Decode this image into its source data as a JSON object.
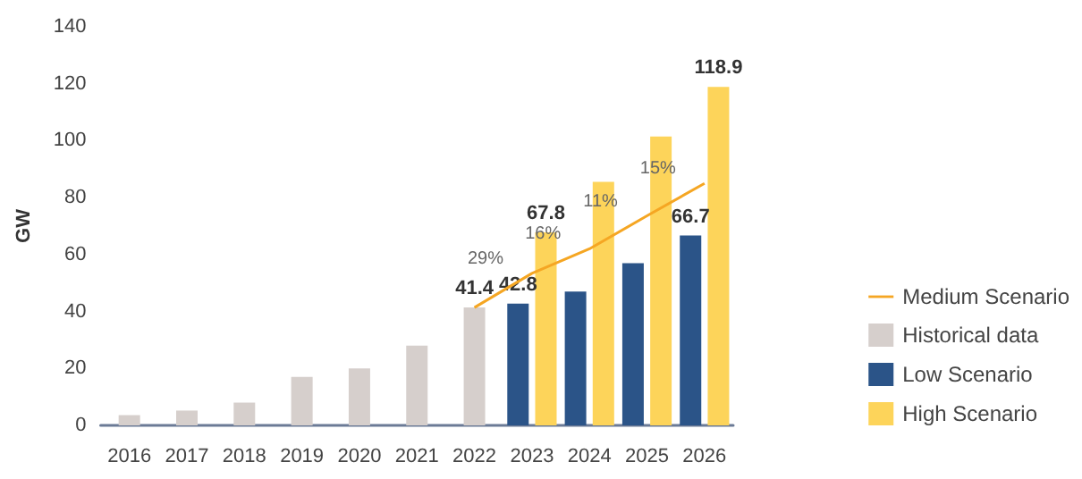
{
  "chart_data": {
    "type": "bar",
    "ylabel": "GW",
    "categories": [
      "2016",
      "2017",
      "2018",
      "2019",
      "2020",
      "2021",
      "2022",
      "2023",
      "2024",
      "2025",
      "2026"
    ],
    "series": [
      {
        "name": "Medium Scenario",
        "type": "line",
        "color": "#f5a623",
        "values": [
          null,
          null,
          null,
          null,
          null,
          null,
          41.4,
          53.4,
          62,
          73.6,
          85
        ]
      },
      {
        "name": "Historical data",
        "color": "#d6cfcc",
        "values": [
          3.6,
          5.2,
          8,
          17,
          20,
          28,
          41.4,
          null,
          null,
          null,
          null
        ],
        "value_labels": [
          null,
          null,
          null,
          null,
          null,
          null,
          "41.4",
          null,
          null,
          null,
          null
        ]
      },
      {
        "name": "Low Scenario",
        "color": "#2b5488",
        "values": [
          null,
          null,
          null,
          null,
          null,
          null,
          null,
          42.8,
          47,
          57,
          66.7
        ],
        "value_labels": [
          null,
          null,
          null,
          null,
          null,
          null,
          null,
          "42.8",
          null,
          null,
          "66.7"
        ]
      },
      {
        "name": "High Scenario",
        "color": "#fdd45a",
        "values": [
          null,
          null,
          null,
          null,
          null,
          null,
          null,
          67.8,
          85.5,
          101.5,
          118.9
        ],
        "value_labels": [
          null,
          null,
          null,
          null,
          null,
          null,
          null,
          "67.8",
          null,
          null,
          "118.9"
        ]
      }
    ],
    "annotations": [
      {
        "text": "29%",
        "x": "2023",
        "y": 53.4
      },
      {
        "text": "16%",
        "x": "2024",
        "y": 62
      },
      {
        "text": "11%",
        "x": "2025",
        "y": 73.6
      },
      {
        "text": "15%",
        "x": "2026",
        "y": 85
      }
    ],
    "ylim": [
      0,
      140
    ],
    "yticks": [
      0,
      20,
      40,
      60,
      80,
      100,
      120,
      140
    ],
    "grid": false,
    "legend": "right",
    "marker": "none"
  }
}
